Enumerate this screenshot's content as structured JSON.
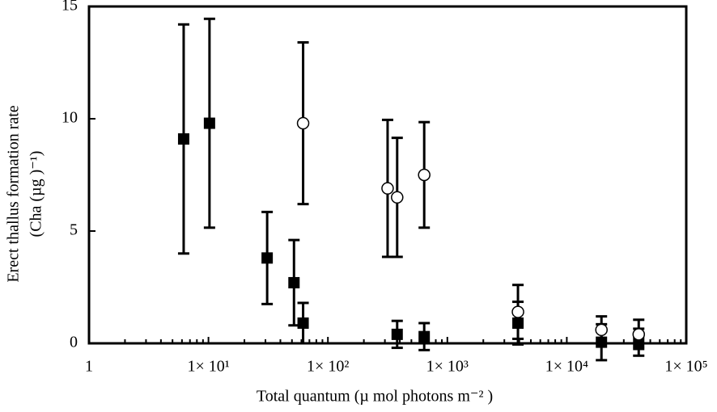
{
  "chart_data": {
    "type": "scatter",
    "xlabel": "Total quantum (µ mol photons m⁻² )",
    "ylabel": [
      "Erect thallus formation rate",
      "(Cha (µg )⁻¹)"
    ],
    "xscale": "log",
    "xlim": [
      1,
      100000
    ],
    "ylim": [
      0,
      15
    ],
    "xticks": [
      1,
      {
        "value": 10,
        "label": "1× 10¹"
      },
      {
        "value": 100,
        "label": "1× 10²"
      },
      {
        "value": 1000,
        "label": "1× 10³"
      },
      {
        "value": 10000,
        "label": "1× 10⁴"
      },
      {
        "value": 100000,
        "label": "1× 10⁵"
      }
    ],
    "yticks": [
      0,
      5,
      10,
      15
    ],
    "series": [
      {
        "marker": "square",
        "color": "#000000",
        "x": [
          6.2,
          10.2,
          31,
          52,
          62,
          380,
          640,
          3900,
          19500,
          40000
        ],
        "values": [
          9.1,
          9.8,
          3.8,
          2.7,
          0.9,
          0.4,
          0.3,
          0.9,
          0.05,
          0.05
        ],
        "errors": [
          5.1,
          4.65,
          2.05,
          1.9,
          0.9,
          0.6,
          0.6,
          0.95,
          0.8,
          0.6
        ]
      },
      {
        "marker": "circle",
        "color": "#000000",
        "x": [
          62,
          316,
          380,
          640,
          3900,
          19500,
          40000
        ],
        "values": [
          9.8,
          6.9,
          6.5,
          7.5,
          1.4,
          0.6,
          0.4
        ],
        "errors": [
          3.6,
          3.05,
          2.65,
          2.35,
          1.2,
          0.6,
          0.65
        ]
      }
    ]
  }
}
